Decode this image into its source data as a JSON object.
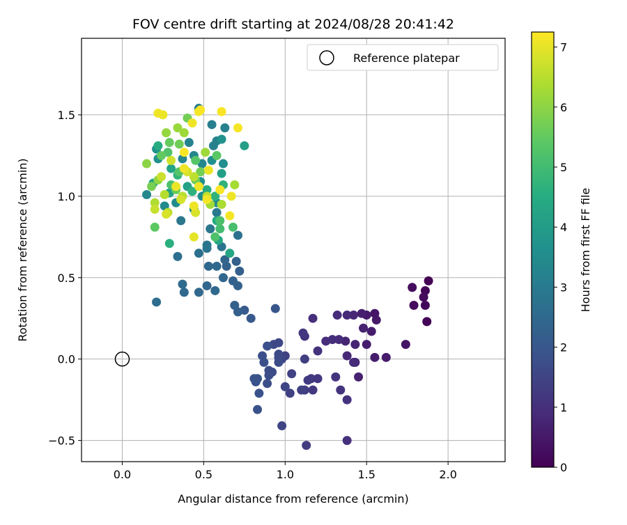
{
  "chart_data": {
    "type": "scatter",
    "title": "FOV centre drift starting at 2024/08/28 20:41:42",
    "xlabel": "Angular distance from reference (arcmin)",
    "ylabel": "Rotation from reference (arcmin)",
    "xlim": [
      -0.25,
      2.35
    ],
    "ylim": [
      -0.63,
      1.97
    ],
    "xticks": [
      0.0,
      0.5,
      1.0,
      1.5,
      2.0
    ],
    "xtick_labels": [
      "0.0",
      "0.5",
      "1.0",
      "1.5",
      "2.0"
    ],
    "yticks": [
      -0.5,
      0.0,
      0.5,
      1.0,
      1.5
    ],
    "ytick_labels": [
      "−0.5",
      "0.0",
      "0.5",
      "1.0",
      "1.5"
    ],
    "grid": true,
    "legend": {
      "placement": "top-right",
      "entries": [
        "Reference platepar"
      ]
    },
    "reference_point": {
      "x": 0.0,
      "y": 0.0
    },
    "colorbar": {
      "label": "Hours from first FF file",
      "colormap": "viridis",
      "range": [
        0,
        7.25
      ],
      "ticks": [
        0,
        1,
        2,
        3,
        4,
        5,
        6,
        7
      ],
      "tick_labels": [
        "0",
        "1",
        "2",
        "3",
        "4",
        "5",
        "6",
        "7"
      ]
    },
    "points": [
      {
        "x": 1.88,
        "y": 0.48,
        "t": 0.0
      },
      {
        "x": 1.87,
        "y": 0.23,
        "t": 0.05
      },
      {
        "x": 1.86,
        "y": 0.42,
        "t": 0.1
      },
      {
        "x": 1.86,
        "y": 0.33,
        "t": 0.15
      },
      {
        "x": 1.85,
        "y": 0.38,
        "t": 0.2
      },
      {
        "x": 1.79,
        "y": 0.33,
        "t": 0.22
      },
      {
        "x": 1.78,
        "y": 0.44,
        "t": 0.25
      },
      {
        "x": 1.74,
        "y": 0.09,
        "t": 0.4
      },
      {
        "x": 1.62,
        "y": 0.01,
        "t": 0.55
      },
      {
        "x": 1.55,
        "y": 0.01,
        "t": 0.6
      },
      {
        "x": 1.56,
        "y": 0.24,
        "t": 0.5
      },
      {
        "x": 1.55,
        "y": 0.28,
        "t": 0.45
      },
      {
        "x": 1.53,
        "y": 0.17,
        "t": 0.6
      },
      {
        "x": 1.5,
        "y": 0.27,
        "t": 0.55
      },
      {
        "x": 1.48,
        "y": 0.19,
        "t": 0.7
      },
      {
        "x": 1.47,
        "y": 0.28,
        "t": 0.65
      },
      {
        "x": 1.5,
        "y": 0.09,
        "t": 0.6
      },
      {
        "x": 1.45,
        "y": -0.11,
        "t": 0.7
      },
      {
        "x": 1.43,
        "y": 0.09,
        "t": 0.75
      },
      {
        "x": 1.43,
        "y": -0.02,
        "t": 0.8
      },
      {
        "x": 1.42,
        "y": 0.27,
        "t": 0.8
      },
      {
        "x": 1.38,
        "y": 0.27,
        "t": 0.85
      },
      {
        "x": 1.37,
        "y": 0.11,
        "t": 0.75
      },
      {
        "x": 1.38,
        "y": 0.02,
        "t": 0.85
      },
      {
        "x": 1.42,
        "y": -0.02,
        "t": 0.9
      },
      {
        "x": 1.33,
        "y": 0.12,
        "t": 0.9
      },
      {
        "x": 1.32,
        "y": 0.27,
        "t": 0.9
      },
      {
        "x": 1.29,
        "y": 0.12,
        "t": 0.95
      },
      {
        "x": 1.25,
        "y": 0.11,
        "t": 0.95
      },
      {
        "x": 1.38,
        "y": -0.5,
        "t": 1.0
      },
      {
        "x": 1.38,
        "y": -0.25,
        "t": 1.05
      },
      {
        "x": 1.31,
        "y": -0.11,
        "t": 1.1
      },
      {
        "x": 1.34,
        "y": -0.19,
        "t": 1.1
      },
      {
        "x": 1.2,
        "y": 0.05,
        "t": 1.05
      },
      {
        "x": 1.17,
        "y": 0.25,
        "t": 1.0
      },
      {
        "x": 1.12,
        "y": 0.14,
        "t": 1.1
      },
      {
        "x": 1.11,
        "y": 0.16,
        "t": 1.2
      },
      {
        "x": 1.2,
        "y": -0.12,
        "t": 1.15
      },
      {
        "x": 1.17,
        "y": -0.19,
        "t": 1.2
      },
      {
        "x": 1.16,
        "y": -0.12,
        "t": 1.25
      },
      {
        "x": 1.14,
        "y": -0.13,
        "t": 1.25
      },
      {
        "x": 1.13,
        "y": -0.53,
        "t": 1.3
      },
      {
        "x": 1.12,
        "y": -0.19,
        "t": 1.3
      },
      {
        "x": 1.12,
        "y": 0.0,
        "t": 1.35
      },
      {
        "x": 1.1,
        "y": -0.19,
        "t": 1.4
      },
      {
        "x": 1.04,
        "y": -0.09,
        "t": 1.45
      },
      {
        "x": 1.03,
        "y": -0.21,
        "t": 1.4
      },
      {
        "x": 1.0,
        "y": 0.02,
        "t": 1.45
      },
      {
        "x": 1.0,
        "y": -0.17,
        "t": 1.5
      },
      {
        "x": 0.98,
        "y": -0.41,
        "t": 1.5
      },
      {
        "x": 0.98,
        "y": 0.0,
        "t": 1.55
      },
      {
        "x": 0.96,
        "y": 0.1,
        "t": 1.6
      },
      {
        "x": 0.93,
        "y": 0.09,
        "t": 1.6
      },
      {
        "x": 0.96,
        "y": 0.01,
        "t": 1.65
      },
      {
        "x": 0.96,
        "y": 0.03,
        "t": 1.65
      },
      {
        "x": 0.96,
        "y": -0.02,
        "t": 1.7
      },
      {
        "x": 0.92,
        "y": -0.08,
        "t": 1.7
      },
      {
        "x": 0.9,
        "y": -0.07,
        "t": 1.7
      },
      {
        "x": 0.9,
        "y": -0.1,
        "t": 1.75
      },
      {
        "x": 0.89,
        "y": -0.15,
        "t": 1.75
      },
      {
        "x": 0.89,
        "y": 0.08,
        "t": 1.8
      },
      {
        "x": 0.87,
        "y": -0.02,
        "t": 1.8
      },
      {
        "x": 0.86,
        "y": 0.02,
        "t": 1.8
      },
      {
        "x": 0.84,
        "y": -0.21,
        "t": 1.85
      },
      {
        "x": 0.83,
        "y": -0.31,
        "t": 1.85
      },
      {
        "x": 0.82,
        "y": -0.14,
        "t": 1.85
      },
      {
        "x": 0.83,
        "y": -0.12,
        "t": 1.9
      },
      {
        "x": 0.81,
        "y": -0.12,
        "t": 1.9
      },
      {
        "x": 0.94,
        "y": 0.31,
        "t": 1.95
      },
      {
        "x": 0.79,
        "y": 0.25,
        "t": 2.05
      },
      {
        "x": 0.75,
        "y": 0.3,
        "t": 2.1
      },
      {
        "x": 0.71,
        "y": 0.29,
        "t": 2.2
      },
      {
        "x": 0.69,
        "y": 0.33,
        "t": 2.25
      },
      {
        "x": 0.71,
        "y": 0.45,
        "t": 2.3
      },
      {
        "x": 0.68,
        "y": 0.48,
        "t": 2.3
      },
      {
        "x": 0.72,
        "y": 0.54,
        "t": 2.2
      },
      {
        "x": 0.7,
        "y": 0.6,
        "t": 2.25
      },
      {
        "x": 0.64,
        "y": 0.57,
        "t": 2.3
      },
      {
        "x": 0.63,
        "y": 0.61,
        "t": 2.35
      },
      {
        "x": 0.62,
        "y": 0.5,
        "t": 2.4
      },
      {
        "x": 0.57,
        "y": 0.42,
        "t": 2.45
      },
      {
        "x": 0.52,
        "y": 0.45,
        "t": 2.4
      },
      {
        "x": 0.58,
        "y": 0.57,
        "t": 2.45
      },
      {
        "x": 0.53,
        "y": 0.57,
        "t": 2.45
      },
      {
        "x": 0.47,
        "y": 0.41,
        "t": 2.5
      },
      {
        "x": 0.38,
        "y": 0.41,
        "t": 2.5
      },
      {
        "x": 0.37,
        "y": 0.46,
        "t": 2.55
      },
      {
        "x": 0.21,
        "y": 0.35,
        "t": 2.6
      },
      {
        "x": 0.34,
        "y": 0.63,
        "t": 2.65
      },
      {
        "x": 0.47,
        "y": 0.65,
        "t": 2.7
      },
      {
        "x": 0.52,
        "y": 0.68,
        "t": 2.8
      },
      {
        "x": 0.52,
        "y": 0.7,
        "t": 2.85
      },
      {
        "x": 0.61,
        "y": 0.69,
        "t": 2.8
      },
      {
        "x": 0.71,
        "y": 0.76,
        "t": 2.75
      },
      {
        "x": 0.54,
        "y": 0.8,
        "t": 2.9
      },
      {
        "x": 0.36,
        "y": 0.85,
        "t": 2.9
      },
      {
        "x": 0.58,
        "y": 0.9,
        "t": 2.95
      },
      {
        "x": 0.47,
        "y": 1.54,
        "t": 3.05
      },
      {
        "x": 0.55,
        "y": 1.44,
        "t": 3.1
      },
      {
        "x": 0.63,
        "y": 1.42,
        "t": 3.15
      },
      {
        "x": 0.58,
        "y": 1.34,
        "t": 3.2
      },
      {
        "x": 0.56,
        "y": 1.31,
        "t": 3.2
      },
      {
        "x": 0.41,
        "y": 1.33,
        "t": 3.25
      },
      {
        "x": 0.44,
        "y": 1.25,
        "t": 3.3
      },
      {
        "x": 0.37,
        "y": 1.23,
        "t": 3.3
      },
      {
        "x": 0.49,
        "y": 1.2,
        "t": 3.35
      },
      {
        "x": 0.15,
        "y": 1.01,
        "t": 3.4
      },
      {
        "x": 0.26,
        "y": 0.94,
        "t": 3.45
      },
      {
        "x": 0.33,
        "y": 0.96,
        "t": 3.5
      },
      {
        "x": 0.44,
        "y": 0.92,
        "t": 3.5
      },
      {
        "x": 0.49,
        "y": 1.0,
        "t": 3.55
      },
      {
        "x": 0.58,
        "y": 0.96,
        "t": 3.55
      },
      {
        "x": 0.62,
        "y": 1.2,
        "t": 3.6
      },
      {
        "x": 0.55,
        "y": 1.22,
        "t": 3.6
      },
      {
        "x": 0.48,
        "y": 1.09,
        "t": 3.65
      },
      {
        "x": 0.22,
        "y": 1.23,
        "t": 3.65
      },
      {
        "x": 0.21,
        "y": 1.29,
        "t": 3.7
      },
      {
        "x": 0.61,
        "y": 1.35,
        "t": 3.7
      },
      {
        "x": 0.75,
        "y": 1.31,
        "t": 4.05
      },
      {
        "x": 0.61,
        "y": 1.14,
        "t": 4.1
      },
      {
        "x": 0.4,
        "y": 1.06,
        "t": 4.15
      },
      {
        "x": 0.29,
        "y": 1.02,
        "t": 4.2
      },
      {
        "x": 0.19,
        "y": 1.08,
        "t": 4.2
      },
      {
        "x": 0.3,
        "y": 1.17,
        "t": 4.25
      },
      {
        "x": 0.66,
        "y": 0.65,
        "t": 4.3
      },
      {
        "x": 0.59,
        "y": 0.73,
        "t": 4.35
      },
      {
        "x": 0.58,
        "y": 0.85,
        "t": 4.4
      },
      {
        "x": 0.52,
        "y": 1.04,
        "t": 4.45
      },
      {
        "x": 0.22,
        "y": 1.31,
        "t": 4.5
      },
      {
        "x": 0.29,
        "y": 0.71,
        "t": 4.6
      },
      {
        "x": 0.43,
        "y": 1.03,
        "t": 4.65
      },
      {
        "x": 0.57,
        "y": 1.0,
        "t": 4.7
      },
      {
        "x": 0.62,
        "y": 1.07,
        "t": 4.7
      },
      {
        "x": 0.34,
        "y": 1.13,
        "t": 4.75
      },
      {
        "x": 0.6,
        "y": 0.8,
        "t": 5.05
      },
      {
        "x": 0.68,
        "y": 0.81,
        "t": 5.1
      },
      {
        "x": 0.6,
        "y": 0.85,
        "t": 5.15
      },
      {
        "x": 0.57,
        "y": 0.75,
        "t": 5.2
      },
      {
        "x": 0.3,
        "y": 1.07,
        "t": 5.2
      },
      {
        "x": 0.28,
        "y": 1.27,
        "t": 5.25
      },
      {
        "x": 0.35,
        "y": 1.15,
        "t": 5.3
      },
      {
        "x": 0.45,
        "y": 1.22,
        "t": 5.35
      },
      {
        "x": 0.58,
        "y": 1.25,
        "t": 5.4
      },
      {
        "x": 0.2,
        "y": 0.81,
        "t": 5.45
      },
      {
        "x": 0.24,
        "y": 1.25,
        "t": 5.5
      },
      {
        "x": 0.29,
        "y": 1.33,
        "t": 5.55
      },
      {
        "x": 0.45,
        "y": 1.1,
        "t": 5.6
      },
      {
        "x": 0.33,
        "y": 1.04,
        "t": 5.6
      },
      {
        "x": 0.35,
        "y": 1.32,
        "t": 5.65
      },
      {
        "x": 0.48,
        "y": 1.15,
        "t": 5.7
      },
      {
        "x": 0.4,
        "y": 1.48,
        "t": 5.7
      },
      {
        "x": 0.18,
        "y": 1.06,
        "t": 5.75
      },
      {
        "x": 0.15,
        "y": 1.2,
        "t": 6.0
      },
      {
        "x": 0.22,
        "y": 1.1,
        "t": 6.05
      },
      {
        "x": 0.27,
        "y": 1.39,
        "t": 6.1
      },
      {
        "x": 0.34,
        "y": 1.42,
        "t": 6.15
      },
      {
        "x": 0.38,
        "y": 1.39,
        "t": 6.2
      },
      {
        "x": 0.51,
        "y": 1.27,
        "t": 6.2
      },
      {
        "x": 0.54,
        "y": 0.95,
        "t": 6.25
      },
      {
        "x": 0.69,
        "y": 1.07,
        "t": 6.3
      },
      {
        "x": 0.61,
        "y": 0.95,
        "t": 6.35
      },
      {
        "x": 0.2,
        "y": 0.96,
        "t": 6.4
      },
      {
        "x": 0.26,
        "y": 1.01,
        "t": 6.45
      },
      {
        "x": 0.28,
        "y": 0.9,
        "t": 6.5
      },
      {
        "x": 0.37,
        "y": 1.0,
        "t": 6.5
      },
      {
        "x": 0.44,
        "y": 1.12,
        "t": 6.55
      },
      {
        "x": 0.52,
        "y": 1.0,
        "t": 6.6
      },
      {
        "x": 0.2,
        "y": 0.92,
        "t": 6.65
      },
      {
        "x": 0.24,
        "y": 1.12,
        "t": 6.7
      },
      {
        "x": 0.3,
        "y": 1.22,
        "t": 6.75
      },
      {
        "x": 0.36,
        "y": 0.98,
        "t": 6.8
      },
      {
        "x": 0.4,
        "y": 1.15,
        "t": 6.8
      },
      {
        "x": 0.45,
        "y": 0.9,
        "t": 6.85
      },
      {
        "x": 0.27,
        "y": 0.89,
        "t": 6.85
      },
      {
        "x": 0.44,
        "y": 0.75,
        "t": 7.0
      },
      {
        "x": 0.25,
        "y": 1.5,
        "t": 7.05
      },
      {
        "x": 0.22,
        "y": 1.51,
        "t": 7.1
      },
      {
        "x": 0.43,
        "y": 1.45,
        "t": 7.1
      },
      {
        "x": 0.47,
        "y": 1.52,
        "t": 7.15
      },
      {
        "x": 0.48,
        "y": 1.53,
        "t": 7.2
      },
      {
        "x": 0.61,
        "y": 1.52,
        "t": 7.2
      },
      {
        "x": 0.71,
        "y": 1.42,
        "t": 7.15
      },
      {
        "x": 0.67,
        "y": 1.0,
        "t": 7.1
      },
      {
        "x": 0.66,
        "y": 0.88,
        "t": 7.15
      },
      {
        "x": 0.38,
        "y": 1.17,
        "t": 7.1
      },
      {
        "x": 0.53,
        "y": 1.16,
        "t": 7.05
      },
      {
        "x": 0.44,
        "y": 0.94,
        "t": 7.1
      },
      {
        "x": 0.52,
        "y": 0.98,
        "t": 7.15
      },
      {
        "x": 0.6,
        "y": 1.04,
        "t": 7.2
      },
      {
        "x": 0.38,
        "y": 1.27,
        "t": 7.2
      },
      {
        "x": 0.47,
        "y": 1.06,
        "t": 7.1
      },
      {
        "x": 0.33,
        "y": 1.06,
        "t": 7.05
      }
    ]
  }
}
